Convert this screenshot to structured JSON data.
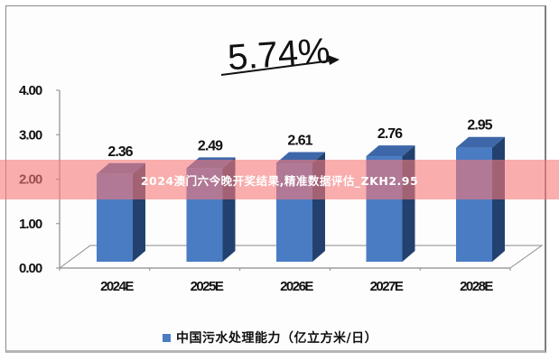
{
  "banner": {
    "text": "2024澳门六今晚开奖结果,精准数据评估_ZKH2.95"
  },
  "annotation": {
    "growth_rate": "5.74%"
  },
  "legend": {
    "label": "中国污水处理能力（亿立方米/日）",
    "color": "#4a7cc4"
  },
  "colors": {
    "bar_front": "#4a7cc4",
    "bar_top": "#3d67a8",
    "bar_side": "#23416e",
    "banner_overlay": "#f77878"
  },
  "axes": {
    "y_ticks": [
      "0.00",
      "1.00",
      "2.00",
      "3.00",
      "4.00"
    ],
    "x_ticks": [
      "2024E",
      "2025E",
      "2026E",
      "2027E",
      "2028E"
    ]
  },
  "chart_data": {
    "type": "bar",
    "title": "",
    "categories": [
      "2024E",
      "2025E",
      "2026E",
      "2027E",
      "2028E"
    ],
    "series": [
      {
        "name": "中国污水处理能力（亿立方米/日）",
        "values": [
          2.36,
          2.49,
          2.61,
          2.76,
          2.95
        ]
      }
    ],
    "data_labels": [
      "2.36",
      "2.49",
      "2.61",
      "2.76",
      "2.95"
    ],
    "annotations": [
      "5.74%"
    ],
    "xlabel": "",
    "ylabel": "",
    "ylim": [
      0,
      4
    ],
    "yticks": [
      0,
      1,
      2,
      3,
      4
    ],
    "grid": false,
    "legend_position": "bottom",
    "style": "3d-column"
  }
}
